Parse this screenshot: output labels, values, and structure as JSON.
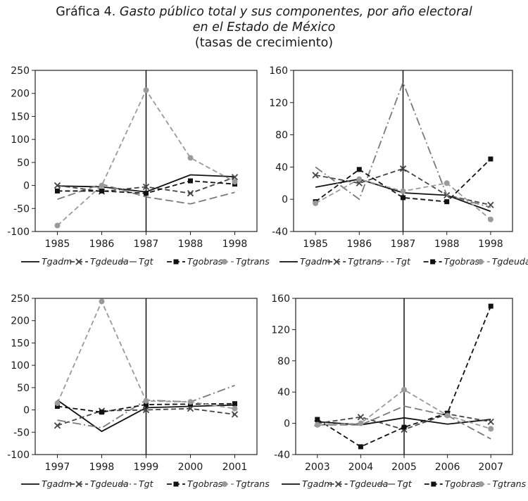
{
  "title": {
    "prefix": "Gráfica 4.",
    "line1_italic": "Gasto público total y sus componentes, por año electoral",
    "line2_italic": "en el Estado de México",
    "line3": "(tasas de crecimiento)"
  },
  "colors": {
    "dark": "#111111",
    "mid": "#444444",
    "light": "#7a7a7a",
    "lighter": "#9a9a9a"
  },
  "chart_data": [
    {
      "type": "line",
      "categories": [
        "1985",
        "1986",
        "1987",
        "1988",
        "1998"
      ],
      "ylim": [
        -100,
        250
      ],
      "yticks": [
        "-100",
        "-50",
        "0",
        "50",
        "100",
        "150",
        "200",
        "250"
      ],
      "ytick_values": [
        -100,
        -50,
        0,
        50,
        100,
        150,
        200,
        250
      ],
      "vline_at": "1987",
      "series": [
        {
          "name": "Tgadm",
          "values": [
            -1,
            -3,
            -14,
            23,
            19
          ],
          "color": "#111111",
          "dash": "solid",
          "marker": "none"
        },
        {
          "name": "Tgdeuda",
          "values": [
            0,
            -13,
            -3,
            -17,
            18
          ],
          "color": "#444444",
          "dash": "dash",
          "marker": "x"
        },
        {
          "name": "Tgt",
          "values": [
            -30,
            3,
            -25,
            -40,
            -15
          ],
          "color": "#7a7a7a",
          "dash": "longdash",
          "marker": "none"
        },
        {
          "name": "Tgobras",
          "values": [
            -12,
            -12,
            -17,
            10,
            3
          ],
          "color": "#111111",
          "dash": "dash",
          "marker": "square"
        },
        {
          "name": "Tgtrans",
          "values": [
            -87,
            0,
            207,
            60,
            8
          ],
          "color": "#9a9a9a",
          "dash": "dash",
          "marker": "circle"
        }
      ]
    },
    {
      "type": "line",
      "categories": [
        "1985",
        "1986",
        "1987",
        "1988",
        "1998"
      ],
      "ylim": [
        -40,
        160
      ],
      "yticks": [
        "-40",
        "0",
        "40",
        "80",
        "120",
        "160"
      ],
      "ytick_values": [
        -40,
        0,
        40,
        80,
        120,
        160
      ],
      "vline_at": "1987",
      "series": [
        {
          "name": "Tgadm",
          "values": [
            15,
            25,
            8,
            5,
            -15
          ],
          "color": "#111111",
          "dash": "solid",
          "marker": "none"
        },
        {
          "name": "Tgtrans",
          "values": [
            30,
            20,
            38,
            5,
            -7
          ],
          "color": "#444444",
          "dash": "dash",
          "marker": "x"
        },
        {
          "name": "Tgt",
          "values": [
            40,
            0,
            145,
            5,
            -10
          ],
          "color": "#7a7a7a",
          "dash": "dashdot",
          "marker": "none"
        },
        {
          "name": "Tgobras",
          "values": [
            -3,
            37,
            2,
            -3,
            50
          ],
          "color": "#111111",
          "dash": "dash",
          "marker": "square"
        },
        {
          "name": "Tgdeuda",
          "values": [
            -5,
            25,
            10,
            20,
            -25
          ],
          "color": "#9a9a9a",
          "dash": "dash",
          "marker": "circle"
        }
      ]
    },
    {
      "type": "line",
      "categories": [
        "1997",
        "1998",
        "1999",
        "2000",
        "2001"
      ],
      "ylim": [
        -100,
        250
      ],
      "yticks": [
        "-100",
        "-50",
        "0",
        "50",
        "100",
        "150",
        "200",
        "250"
      ],
      "ytick_values": [
        -100,
        -50,
        0,
        50,
        100,
        150,
        200,
        250
      ],
      "vline_at": "1999",
      "series": [
        {
          "name": "Tgadm",
          "values": [
            22,
            -48,
            5,
            8,
            11
          ],
          "color": "#111111",
          "dash": "solid",
          "marker": "none"
        },
        {
          "name": "Tgdeuda",
          "values": [
            -35,
            -2,
            0,
            3,
            -10
          ],
          "color": "#444444",
          "dash": "dash",
          "marker": "x"
        },
        {
          "name": "Tgt",
          "values": [
            -23,
            -40,
            22,
            18,
            55
          ],
          "color": "#7a7a7a",
          "dash": "dashdot",
          "marker": "none"
        },
        {
          "name": "Tgobras",
          "values": [
            8,
            -5,
            12,
            13,
            14
          ],
          "color": "#111111",
          "dash": "dash",
          "marker": "square"
        },
        {
          "name": "Tgtrans",
          "values": [
            15,
            243,
            20,
            18,
            3
          ],
          "color": "#9a9a9a",
          "dash": "dash",
          "marker": "circle"
        }
      ]
    },
    {
      "type": "line",
      "categories": [
        "2003",
        "2004",
        "2005",
        "2006",
        "2007"
      ],
      "ylim": [
        -40,
        160
      ],
      "yticks": [
        "-40",
        "0",
        "40",
        "80",
        "120",
        "160"
      ],
      "ytick_values": [
        -40,
        0,
        40,
        80,
        120,
        160
      ],
      "vline_at": "2005",
      "series": [
        {
          "name": "Tgadm",
          "values": [
            2,
            -2,
            7,
            -1,
            5
          ],
          "color": "#111111",
          "dash": "solid",
          "marker": "none"
        },
        {
          "name": "Tgdeuda",
          "values": [
            0,
            8,
            -8,
            12,
            2
          ],
          "color": "#444444",
          "dash": "dash",
          "marker": "x"
        },
        {
          "name": "Tgt",
          "values": [
            -2,
            -2,
            22,
            10,
            -20
          ],
          "color": "#7a7a7a",
          "dash": "longdash",
          "marker": "none"
        },
        {
          "name": "Tgobras",
          "values": [
            5,
            -30,
            -5,
            13,
            150
          ],
          "color": "#111111",
          "dash": "dash",
          "marker": "square"
        },
        {
          "name": "Tgtrans",
          "values": [
            -2,
            0,
            43,
            10,
            -7
          ],
          "color": "#9a9a9a",
          "dash": "dash",
          "marker": "circle"
        }
      ]
    }
  ]
}
